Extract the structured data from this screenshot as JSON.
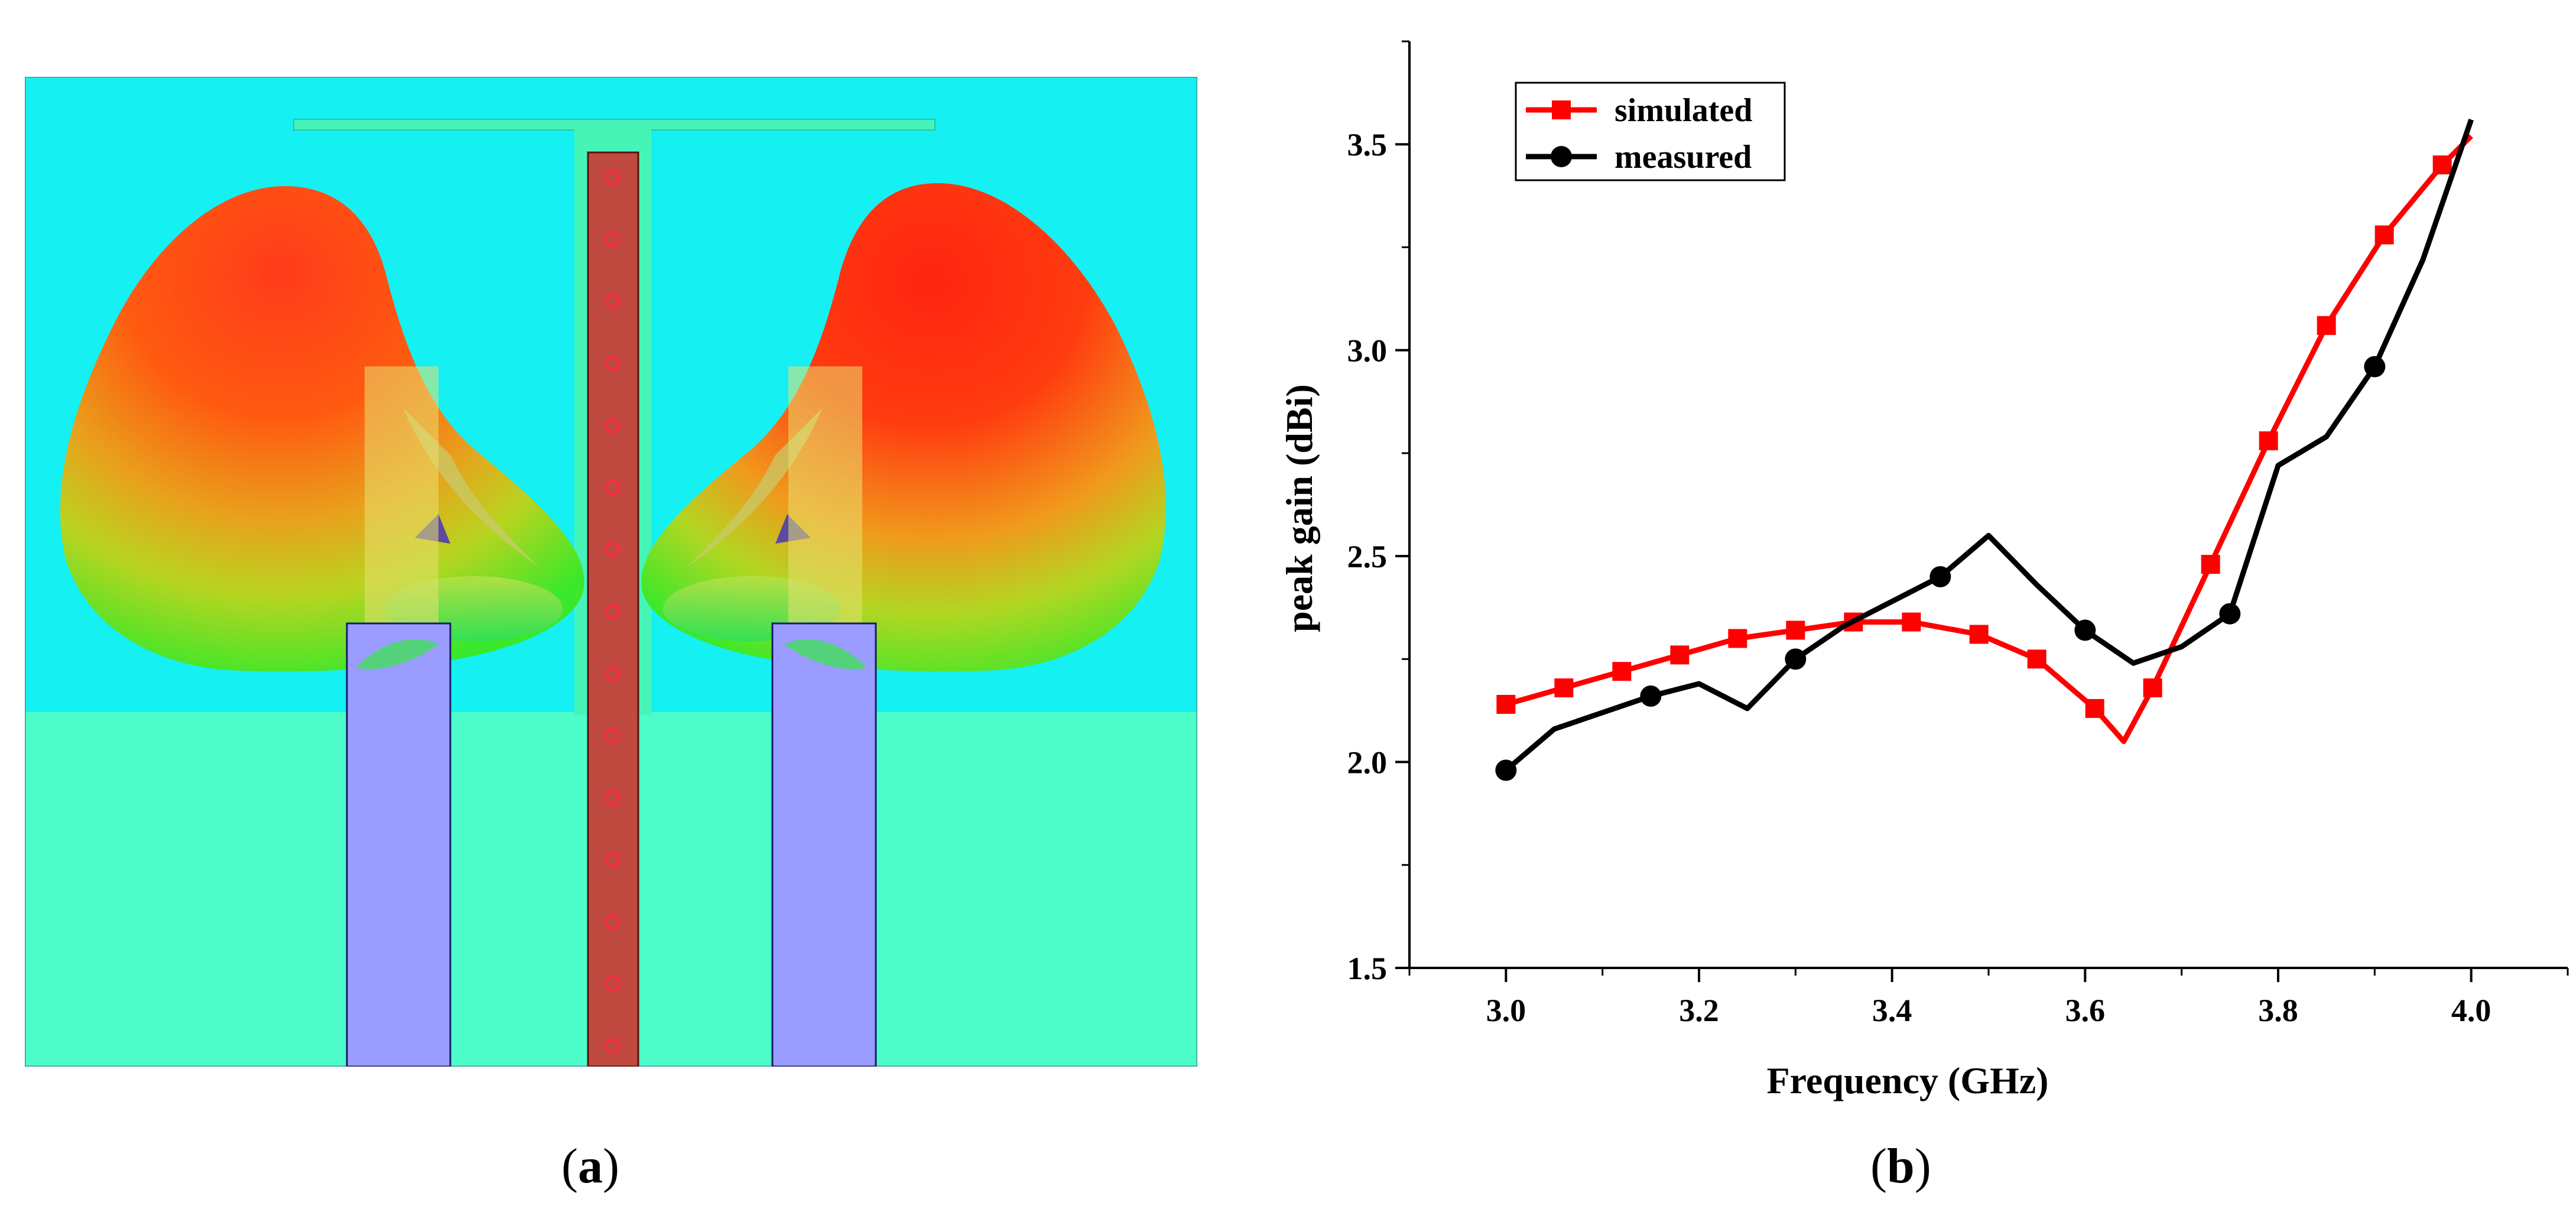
{
  "captions": {
    "a_open": "(",
    "a_letter": "a",
    "a_close": ")",
    "b_open": "(",
    "b_letter": "b",
    "b_close": ")"
  },
  "colors": {
    "substrate": "#15f0f2",
    "ground": "#4cfcc9",
    "feed_line": "#c04a3f",
    "feed_dots": "#ff2a4a",
    "ports": "#9a9cff",
    "simulated": "#ff0000",
    "measured": "#000000"
  },
  "chart_data": {
    "type": "line",
    "xlabel": "Frequency (GHz)",
    "ylabel": "peak gain (dBi)",
    "xlim": [
      2.9,
      4.1
    ],
    "ylim": [
      1.5,
      3.75
    ],
    "xticks": [
      "3.0",
      "3.2",
      "3.4",
      "3.6",
      "3.8",
      "4.0"
    ],
    "yticks": [
      "1.5",
      "2.0",
      "2.5",
      "3.0",
      "3.5"
    ],
    "legend_position": "top-left",
    "series": [
      {
        "name": "simulated",
        "color": "#ff0000",
        "marker": "square",
        "x": [
          3.0,
          3.06,
          3.12,
          3.18,
          3.24,
          3.3,
          3.36,
          3.42,
          3.49,
          3.55,
          3.61,
          3.64,
          3.67,
          3.73,
          3.79,
          3.85,
          3.91,
          3.97,
          4.0
        ],
        "y": [
          2.14,
          2.18,
          2.22,
          2.26,
          2.3,
          2.32,
          2.34,
          2.34,
          2.31,
          2.25,
          2.13,
          2.05,
          2.18,
          2.48,
          2.78,
          3.06,
          3.28,
          3.45,
          3.52
        ],
        "marker_x": [
          3.0,
          3.06,
          3.12,
          3.18,
          3.24,
          3.3,
          3.36,
          3.42,
          3.49,
          3.55,
          3.61,
          3.67,
          3.73,
          3.79,
          3.85,
          3.91,
          3.97
        ],
        "marker_y": [
          2.14,
          2.18,
          2.22,
          2.26,
          2.3,
          2.32,
          2.34,
          2.34,
          2.31,
          2.25,
          2.13,
          2.18,
          2.48,
          2.78,
          3.06,
          3.28,
          3.45
        ]
      },
      {
        "name": "measured",
        "color": "#000000",
        "marker": "circle",
        "x": [
          3.0,
          3.05,
          3.1,
          3.15,
          3.2,
          3.25,
          3.3,
          3.35,
          3.4,
          3.45,
          3.5,
          3.55,
          3.6,
          3.65,
          3.7,
          3.75,
          3.8,
          3.85,
          3.9,
          3.95,
          4.0
        ],
        "y": [
          1.98,
          2.08,
          2.12,
          2.16,
          2.19,
          2.13,
          2.25,
          2.33,
          2.39,
          2.45,
          2.55,
          2.43,
          2.32,
          2.24,
          2.28,
          2.36,
          2.72,
          2.79,
          2.96,
          3.22,
          3.56
        ],
        "marker_x": [
          3.0,
          3.15,
          3.3,
          3.45,
          3.6,
          3.75,
          3.9
        ],
        "marker_y": [
          1.98,
          2.16,
          2.25,
          2.45,
          2.32,
          2.36,
          2.96
        ]
      }
    ]
  }
}
